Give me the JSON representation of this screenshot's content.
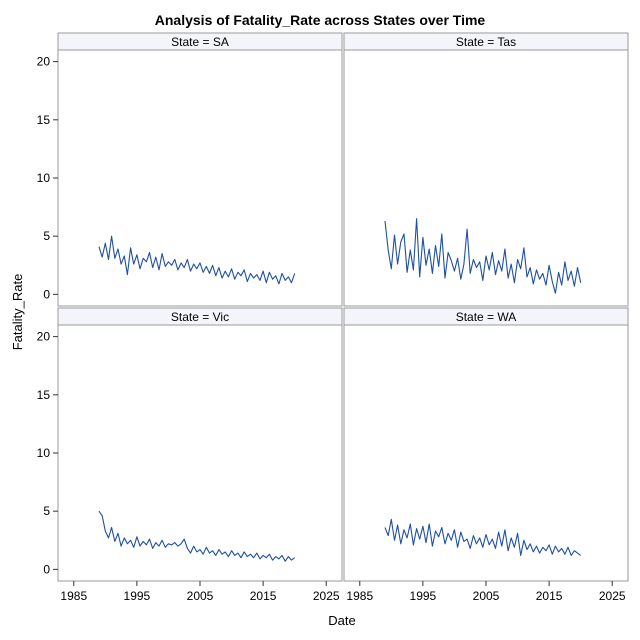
{
  "chart_data": {
    "type": "line",
    "title": "Analysis of Fatality_Rate across States over Time",
    "xlabel": "Date",
    "ylabel": "Fatality_Rate",
    "xlim": [
      1982.5,
      2027.5
    ],
    "ylim": [
      -1,
      21
    ],
    "x_ticks": [
      "1985",
      "1995",
      "2005",
      "2015",
      "2025"
    ],
    "y_ticks": [
      "0",
      "5",
      "10",
      "15",
      "20"
    ],
    "grid": false,
    "line_color": "#1f4fa3",
    "panel_header_color": "#f4f5fb",
    "panels": [
      {
        "label": "State = SA",
        "x": [
          1989.0,
          1989.5,
          1990.0,
          1990.5,
          1991.0,
          1991.5,
          1992.0,
          1992.5,
          1993.0,
          1993.5,
          1994.0,
          1994.5,
          1995.0,
          1995.5,
          1996.0,
          1996.5,
          1997.0,
          1997.5,
          1998.0,
          1998.5,
          1999.0,
          1999.5,
          2000.0,
          2000.5,
          2001.0,
          2001.5,
          2002.0,
          2002.5,
          2003.0,
          2003.5,
          2004.0,
          2004.5,
          2005.0,
          2005.5,
          2006.0,
          2006.5,
          2007.0,
          2007.5,
          2008.0,
          2008.5,
          2009.0,
          2009.5,
          2010.0,
          2010.5,
          2011.0,
          2011.5,
          2012.0,
          2012.5,
          2013.0,
          2013.5,
          2014.0,
          2014.5,
          2015.0,
          2015.5,
          2016.0,
          2016.5,
          2017.0,
          2017.5,
          2018.0,
          2018.5,
          2019.0,
          2019.5,
          2020.0
        ],
        "y": [
          4.1,
          3.2,
          4.4,
          3.0,
          5.0,
          3.1,
          3.9,
          2.6,
          3.3,
          1.7,
          4.0,
          2.6,
          3.4,
          2.2,
          3.1,
          2.8,
          3.6,
          2.3,
          3.2,
          2.1,
          3.5,
          2.4,
          2.8,
          2.5,
          3.0,
          2.1,
          2.7,
          2.3,
          3.0,
          2.0,
          2.6,
          2.2,
          2.7,
          1.9,
          2.4,
          1.8,
          2.5,
          1.6,
          2.3,
          1.4,
          2.0,
          1.5,
          2.2,
          1.3,
          1.9,
          1.6,
          2.1,
          1.1,
          1.8,
          1.4,
          1.7,
          1.2,
          2.0,
          1.0,
          1.9,
          1.3,
          1.6,
          0.9,
          1.8,
          1.2,
          1.5,
          1.0,
          1.8
        ]
      },
      {
        "label": "State = Tas",
        "x": [
          1989.0,
          1989.5,
          1990.0,
          1990.5,
          1991.0,
          1991.5,
          1992.0,
          1992.5,
          1993.0,
          1993.5,
          1994.0,
          1994.5,
          1995.0,
          1995.5,
          1996.0,
          1996.5,
          1997.0,
          1997.5,
          1998.0,
          1998.5,
          1999.0,
          1999.5,
          2000.0,
          2000.5,
          2001.0,
          2001.5,
          2002.0,
          2002.5,
          2003.0,
          2003.5,
          2004.0,
          2004.5,
          2005.0,
          2005.5,
          2006.0,
          2006.5,
          2007.0,
          2007.5,
          2008.0,
          2008.5,
          2009.0,
          2009.5,
          2010.0,
          2010.5,
          2011.0,
          2011.5,
          2012.0,
          2012.5,
          2013.0,
          2013.5,
          2014.0,
          2014.5,
          2015.0,
          2015.5,
          2016.0,
          2016.5,
          2017.0,
          2017.5,
          2018.0,
          2018.5,
          2019.0,
          2019.5,
          2020.0
        ],
        "y": [
          6.3,
          3.8,
          2.2,
          5.1,
          2.6,
          4.5,
          5.2,
          1.9,
          3.8,
          2.1,
          6.5,
          1.5,
          4.9,
          2.5,
          3.9,
          1.8,
          4.2,
          2.4,
          5.2,
          1.4,
          3.6,
          2.9,
          2.0,
          3.1,
          1.3,
          2.6,
          5.6,
          1.8,
          3.0,
          2.3,
          2.8,
          1.2,
          3.3,
          2.1,
          3.6,
          1.7,
          2.9,
          2.0,
          3.9,
          1.4,
          2.6,
          1.0,
          3.0,
          2.2,
          4.0,
          1.5,
          2.3,
          0.9,
          2.1,
          1.3,
          1.8,
          0.8,
          2.5,
          1.1,
          0.1,
          1.9,
          0.8,
          2.8,
          1.2,
          2.0,
          0.7,
          2.3,
          1.0
        ]
      },
      {
        "label": "State = Vic",
        "x": [
          1989.0,
          1989.5,
          1990.0,
          1990.5,
          1991.0,
          1991.5,
          1992.0,
          1992.5,
          1993.0,
          1993.5,
          1994.0,
          1994.5,
          1995.0,
          1995.5,
          1996.0,
          1996.5,
          1997.0,
          1997.5,
          1998.0,
          1998.5,
          1999.0,
          1999.5,
          2000.0,
          2000.5,
          2001.0,
          2001.5,
          2002.0,
          2002.5,
          2003.0,
          2003.5,
          2004.0,
          2004.5,
          2005.0,
          2005.5,
          2006.0,
          2006.5,
          2007.0,
          2007.5,
          2008.0,
          2008.5,
          2009.0,
          2009.5,
          2010.0,
          2010.5,
          2011.0,
          2011.5,
          2012.0,
          2012.5,
          2013.0,
          2013.5,
          2014.0,
          2014.5,
          2015.0,
          2015.5,
          2016.0,
          2016.5,
          2017.0,
          2017.5,
          2018.0,
          2018.5,
          2019.0,
          2019.5,
          2020.0
        ],
        "y": [
          5.0,
          4.6,
          3.3,
          2.7,
          3.6,
          2.4,
          3.1,
          2.0,
          2.7,
          2.2,
          2.5,
          1.9,
          2.8,
          2.0,
          2.4,
          2.1,
          2.6,
          1.8,
          2.3,
          2.0,
          2.5,
          1.9,
          2.2,
          2.1,
          2.3,
          2.0,
          2.2,
          2.6,
          1.8,
          1.4,
          2.0,
          1.5,
          1.7,
          1.3,
          1.9,
          1.4,
          1.6,
          1.2,
          1.7,
          1.3,
          1.5,
          1.1,
          1.6,
          1.2,
          1.4,
          1.0,
          1.5,
          1.1,
          1.3,
          1.0,
          1.4,
          0.9,
          1.2,
          1.0,
          1.3,
          0.8,
          1.1,
          0.9,
          1.2,
          0.7,
          1.1,
          0.8,
          1.0
        ]
      },
      {
        "label": "State = WA",
        "x": [
          1989.0,
          1989.5,
          1990.0,
          1990.5,
          1991.0,
          1991.5,
          1992.0,
          1992.5,
          1993.0,
          1993.5,
          1994.0,
          1994.5,
          1995.0,
          1995.5,
          1996.0,
          1996.5,
          1997.0,
          1997.5,
          1998.0,
          1998.5,
          1999.0,
          1999.5,
          2000.0,
          2000.5,
          2001.0,
          2001.5,
          2002.0,
          2002.5,
          2003.0,
          2003.5,
          2004.0,
          2004.5,
          2005.0,
          2005.5,
          2006.0,
          2006.5,
          2007.0,
          2007.5,
          2008.0,
          2008.5,
          2009.0,
          2009.5,
          2010.0,
          2010.5,
          2011.0,
          2011.5,
          2012.0,
          2012.5,
          2013.0,
          2013.5,
          2014.0,
          2014.5,
          2015.0,
          2015.5,
          2016.0,
          2016.5,
          2017.0,
          2017.5,
          2018.0,
          2018.5,
          2019.0,
          2019.5,
          2020.0
        ],
        "y": [
          3.6,
          2.9,
          4.3,
          2.5,
          3.8,
          2.2,
          3.4,
          2.7,
          3.9,
          2.1,
          3.5,
          2.6,
          3.7,
          2.3,
          3.9,
          2.0,
          3.3,
          2.8,
          3.6,
          2.2,
          3.1,
          2.5,
          3.4,
          1.9,
          3.2,
          2.4,
          2.6,
          1.8,
          2.9,
          2.2,
          2.7,
          1.9,
          3.0,
          2.1,
          2.6,
          1.8,
          3.2,
          2.0,
          3.4,
          1.6,
          2.7,
          1.9,
          3.1,
          1.2,
          2.5,
          1.7,
          2.2,
          1.5,
          2.0,
          1.4,
          1.9,
          1.6,
          2.1,
          1.3,
          2.0,
          1.5,
          1.8,
          1.3,
          1.9,
          1.2,
          1.6,
          1.4,
          1.2
        ]
      }
    ]
  }
}
